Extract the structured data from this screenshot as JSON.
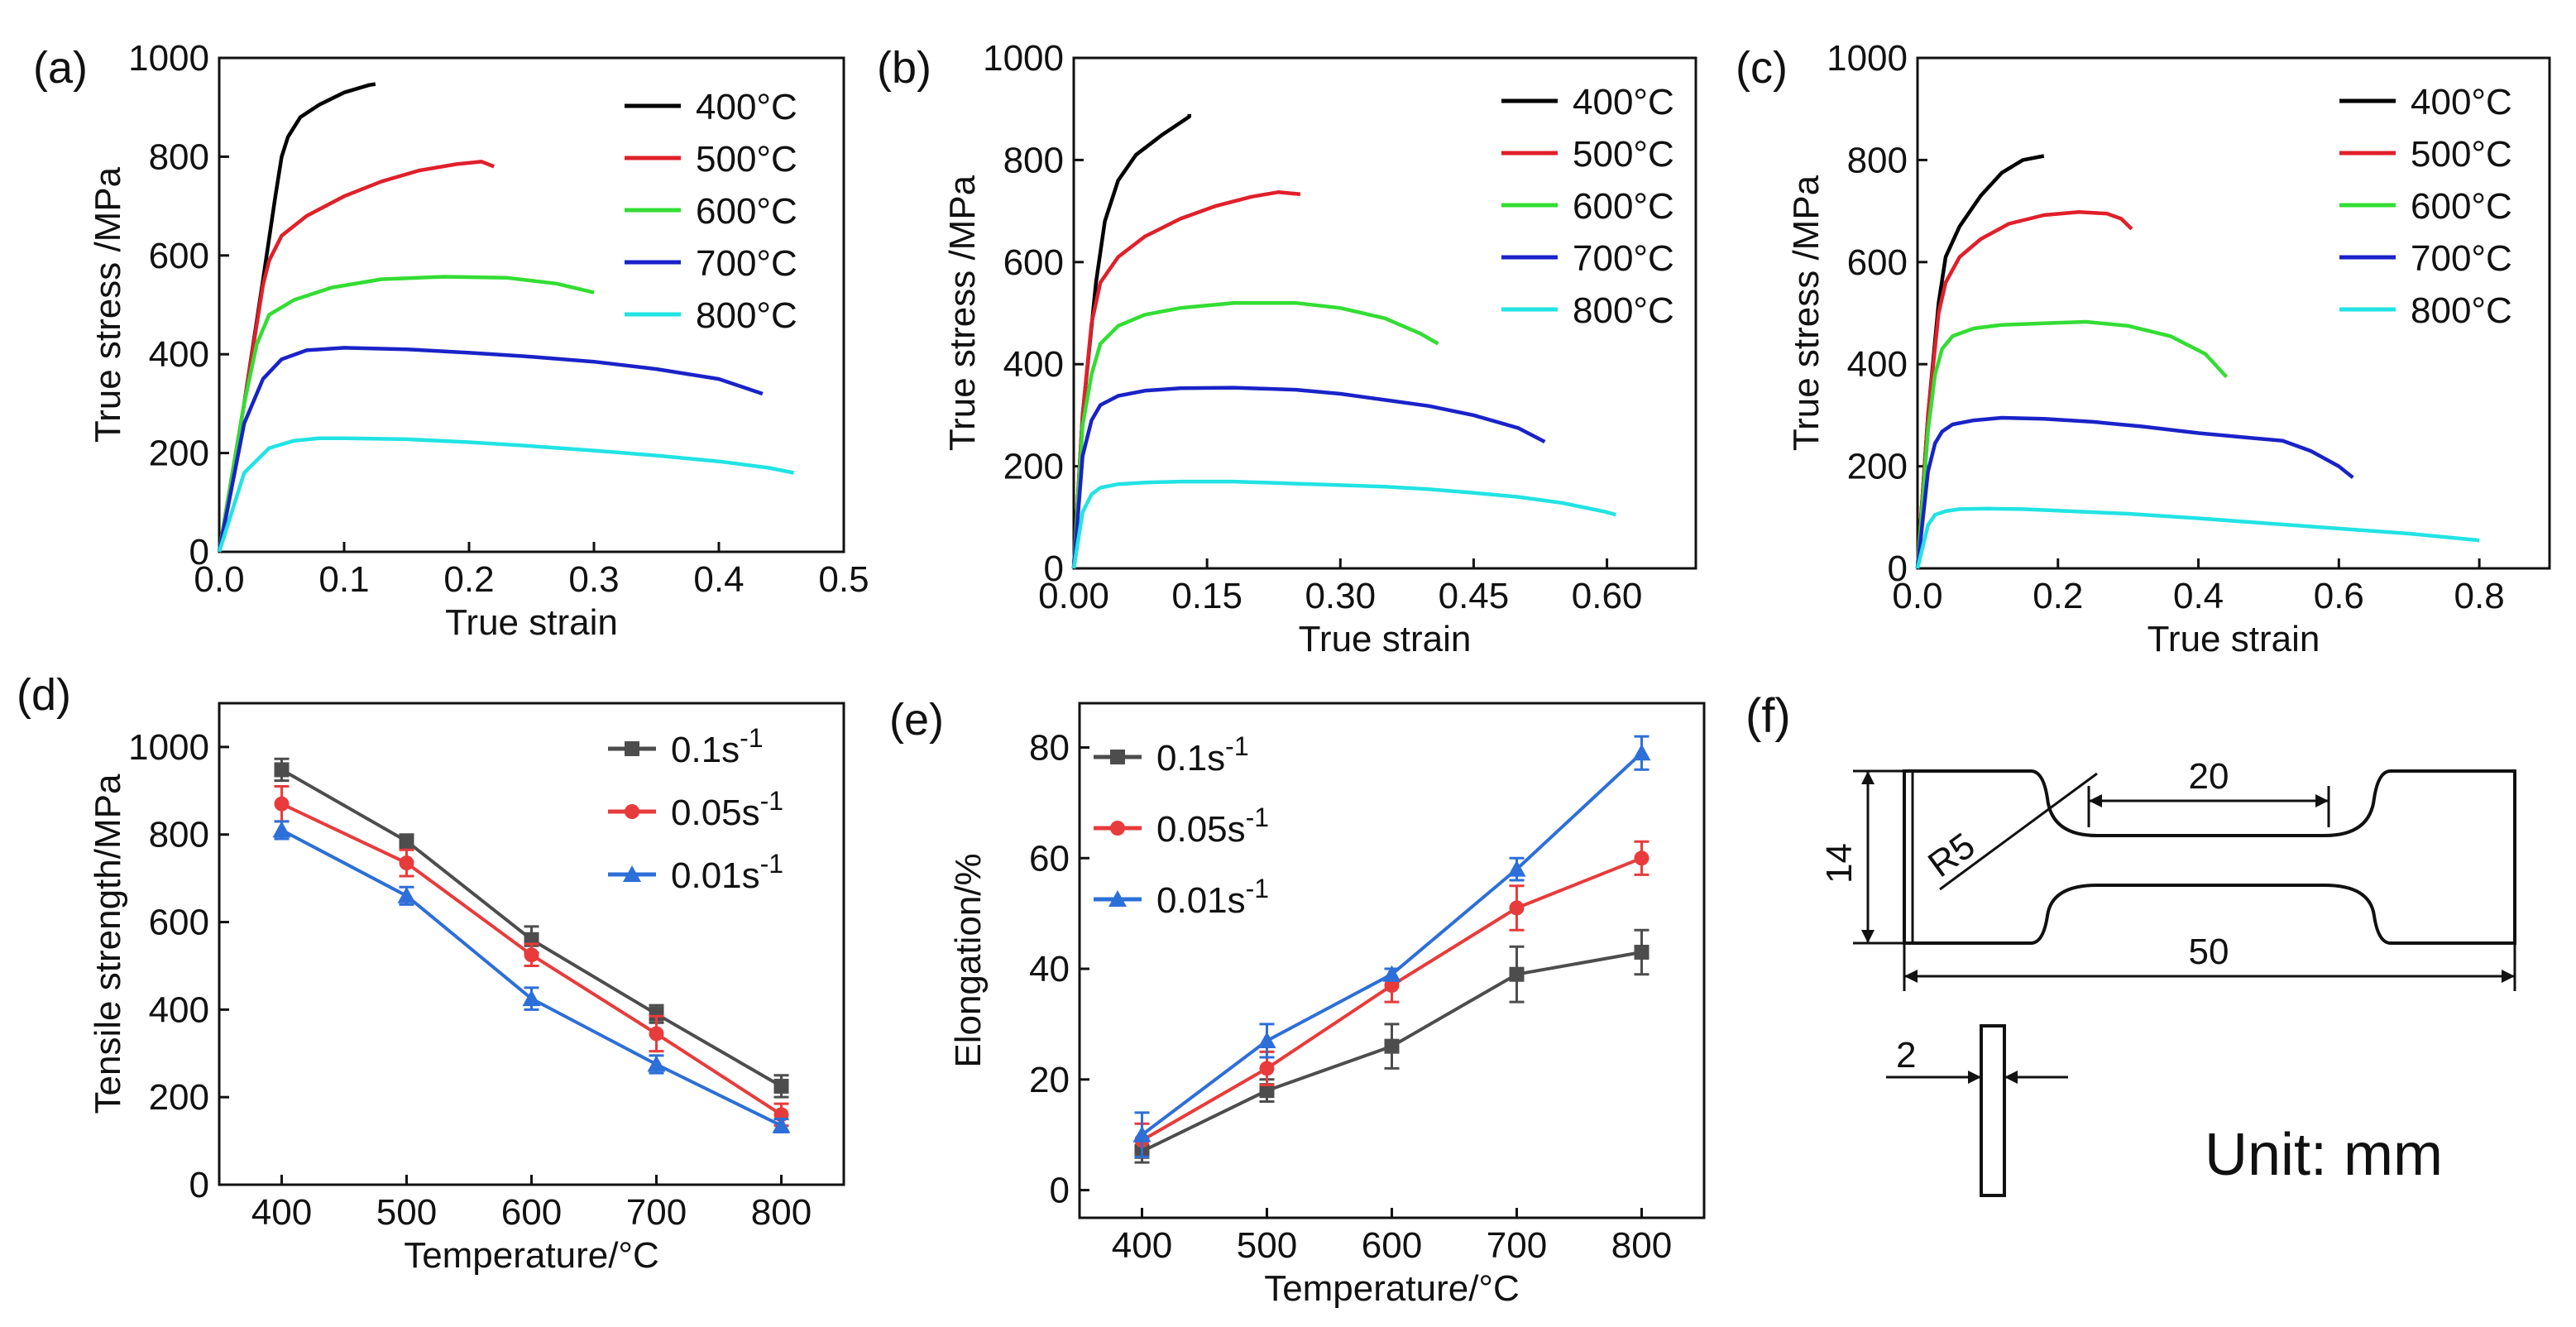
{
  "figure": {
    "unit_label": "Unit: mm",
    "panels": [
      "(a)",
      "(b)",
      "(c)",
      "(d)",
      "(e)",
      "(f)"
    ]
  },
  "colors": {
    "400": "#000000",
    "500": "#e0202a",
    "600": "#33dd33",
    "700": "#1a22c8",
    "800": "#22e3e3",
    "rate_0.1": "#4d4d4d",
    "rate_0.05": "#e83b3b",
    "rate_0.01": "#2d6fd8"
  },
  "chart_data": [
    {
      "id": "a",
      "label": "(a)",
      "type": "line",
      "xlabel": "True strain",
      "ylabel": "True stress /MPa",
      "xlim": [
        0,
        0.5
      ],
      "ylim": [
        0,
        1000
      ],
      "xticks": [
        0.0,
        0.1,
        0.2,
        0.3,
        0.4,
        0.5
      ],
      "xtick_labels": [
        "0.0",
        "0.1",
        "0.2",
        "0.3",
        "0.4",
        "0.5"
      ],
      "yticks": [
        0,
        200,
        400,
        600,
        800,
        1000
      ],
      "ytick_labels": [
        "0",
        "200",
        "400",
        "600",
        "800",
        "1000"
      ],
      "legend_position": "top-right",
      "series": [
        {
          "name": "400°C",
          "color": "#000000",
          "x": [
            0,
            0.02,
            0.035,
            0.045,
            0.05,
            0.055,
            0.065,
            0.08,
            0.1,
            0.12,
            0.125
          ],
          "y": [
            0,
            300,
            550,
            720,
            800,
            840,
            880,
            905,
            930,
            945,
            947
          ]
        },
        {
          "name": "500°C",
          "color": "#e0202a",
          "x": [
            0,
            0.02,
            0.035,
            0.04,
            0.05,
            0.07,
            0.1,
            0.13,
            0.16,
            0.19,
            0.21,
            0.22
          ],
          "y": [
            0,
            300,
            540,
            590,
            640,
            680,
            720,
            750,
            772,
            785,
            790,
            780
          ]
        },
        {
          "name": "600°C",
          "color": "#33dd33",
          "x": [
            0,
            0.02,
            0.03,
            0.04,
            0.06,
            0.09,
            0.13,
            0.18,
            0.23,
            0.27,
            0.3
          ],
          "y": [
            0,
            300,
            420,
            480,
            510,
            535,
            552,
            557,
            555,
            543,
            525
          ]
        },
        {
          "name": "700°C",
          "color": "#1a22c8",
          "x": [
            0,
            0.02,
            0.035,
            0.05,
            0.07,
            0.1,
            0.15,
            0.2,
            0.25,
            0.3,
            0.35,
            0.4,
            0.435
          ],
          "y": [
            0,
            260,
            350,
            390,
            408,
            413,
            410,
            403,
            395,
            385,
            370,
            350,
            320
          ]
        },
        {
          "name": "800°C",
          "color": "#22e3e3",
          "x": [
            0,
            0.02,
            0.04,
            0.06,
            0.08,
            0.1,
            0.15,
            0.2,
            0.25,
            0.3,
            0.35,
            0.4,
            0.44,
            0.46
          ],
          "y": [
            0,
            160,
            210,
            225,
            230,
            230,
            228,
            222,
            214,
            205,
            195,
            183,
            170,
            160
          ]
        }
      ]
    },
    {
      "id": "b",
      "label": "(b)",
      "type": "line",
      "xlabel": "True strain",
      "ylabel": "True stress /MPa",
      "xlim": [
        0,
        0.7
      ],
      "ylim": [
        0,
        1000
      ],
      "xticks": [
        0.0,
        0.15,
        0.3,
        0.45,
        0.6
      ],
      "xtick_labels": [
        "0.00",
        "0.15",
        "0.30",
        "0.45",
        "0.60"
      ],
      "yticks": [
        0,
        200,
        400,
        600,
        800,
        1000
      ],
      "ytick_labels": [
        "0",
        "200",
        "400",
        "600",
        "800",
        "1000"
      ],
      "legend_position": "top-right",
      "series": [
        {
          "name": "400°C",
          "color": "#000000",
          "x": [
            0,
            0.01,
            0.025,
            0.035,
            0.05,
            0.07,
            0.1,
            0.13,
            0.13
          ],
          "y": [
            0,
            300,
            560,
            680,
            760,
            810,
            850,
            885,
            890
          ]
        },
        {
          "name": "500°C",
          "color": "#e0202a",
          "x": [
            0,
            0.01,
            0.02,
            0.03,
            0.05,
            0.08,
            0.12,
            0.16,
            0.2,
            0.23,
            0.255
          ],
          "y": [
            0,
            300,
            480,
            560,
            610,
            650,
            685,
            710,
            728,
            737,
            733
          ]
        },
        {
          "name": "600°C",
          "color": "#33dd33",
          "x": [
            0,
            0.01,
            0.02,
            0.03,
            0.05,
            0.08,
            0.12,
            0.18,
            0.25,
            0.3,
            0.35,
            0.39,
            0.41
          ],
          "y": [
            0,
            280,
            380,
            440,
            475,
            497,
            510,
            520,
            520,
            510,
            490,
            460,
            440
          ]
        },
        {
          "name": "700°C",
          "color": "#1a22c8",
          "x": [
            0,
            0.01,
            0.02,
            0.03,
            0.05,
            0.08,
            0.12,
            0.18,
            0.25,
            0.3,
            0.35,
            0.4,
            0.45,
            0.5,
            0.53
          ],
          "y": [
            0,
            220,
            290,
            320,
            338,
            348,
            353,
            354,
            350,
            342,
            330,
            318,
            300,
            275,
            248
          ]
        },
        {
          "name": "800°C",
          "color": "#22e3e3",
          "x": [
            0,
            0.01,
            0.02,
            0.03,
            0.05,
            0.08,
            0.12,
            0.18,
            0.25,
            0.3,
            0.35,
            0.4,
            0.45,
            0.5,
            0.55,
            0.6,
            0.61
          ],
          "y": [
            0,
            110,
            145,
            158,
            165,
            168,
            170,
            170,
            166,
            163,
            160,
            155,
            148,
            140,
            128,
            110,
            105
          ]
        }
      ]
    },
    {
      "id": "c",
      "label": "(c)",
      "type": "line",
      "xlabel": "True strain",
      "ylabel": "True stress /MPa",
      "xlim": [
        0,
        0.9
      ],
      "ylim": [
        0,
        1000
      ],
      "xticks": [
        0.0,
        0.2,
        0.4,
        0.6,
        0.8
      ],
      "xtick_labels": [
        "0.0",
        "0.2",
        "0.4",
        "0.6",
        "0.8"
      ],
      "yticks": [
        0,
        200,
        400,
        600,
        800,
        1000
      ],
      "ytick_labels": [
        "0",
        "200",
        "400",
        "600",
        "800",
        "1000"
      ],
      "legend_position": "top-right",
      "series": [
        {
          "name": "400°C",
          "color": "#000000",
          "x": [
            0,
            0.015,
            0.03,
            0.04,
            0.06,
            0.09,
            0.12,
            0.15,
            0.18
          ],
          "y": [
            0,
            300,
            520,
            610,
            670,
            730,
            775,
            800,
            808
          ]
        },
        {
          "name": "500°C",
          "color": "#e0202a",
          "x": [
            0,
            0.015,
            0.03,
            0.04,
            0.06,
            0.09,
            0.13,
            0.18,
            0.23,
            0.27,
            0.29,
            0.305
          ],
          "y": [
            0,
            300,
            500,
            560,
            610,
            645,
            675,
            692,
            698,
            695,
            685,
            665
          ]
        },
        {
          "name": "600°C",
          "color": "#33dd33",
          "x": [
            0,
            0.015,
            0.025,
            0.035,
            0.05,
            0.08,
            0.12,
            0.18,
            0.24,
            0.3,
            0.36,
            0.41,
            0.44
          ],
          "y": [
            0,
            270,
            380,
            430,
            455,
            470,
            477,
            480,
            483,
            475,
            455,
            420,
            375
          ]
        },
        {
          "name": "700°C",
          "color": "#1a22c8",
          "x": [
            0,
            0.015,
            0.025,
            0.035,
            0.05,
            0.08,
            0.12,
            0.18,
            0.25,
            0.32,
            0.4,
            0.48,
            0.52,
            0.56,
            0.6,
            0.62
          ],
          "y": [
            0,
            190,
            245,
            268,
            282,
            290,
            295,
            293,
            287,
            278,
            265,
            255,
            250,
            230,
            200,
            178
          ]
        },
        {
          "name": "800°C",
          "color": "#22e3e3",
          "x": [
            0,
            0.015,
            0.025,
            0.04,
            0.06,
            0.1,
            0.15,
            0.2,
            0.3,
            0.4,
            0.5,
            0.6,
            0.7,
            0.8
          ],
          "y": [
            0,
            85,
            105,
            112,
            116,
            117,
            116,
            113,
            107,
            98,
            88,
            78,
            68,
            55
          ]
        }
      ]
    },
    {
      "id": "d",
      "label": "(d)",
      "type": "line",
      "xlabel": "Temperature/°C",
      "ylabel": "Tensile strength/MPa",
      "xlim": [
        350,
        850
      ],
      "ylim": [
        0,
        1100
      ],
      "xticks": [
        400,
        500,
        600,
        700,
        800
      ],
      "xtick_labels": [
        "400",
        "500",
        "600",
        "700",
        "800"
      ],
      "yticks": [
        0,
        200,
        400,
        600,
        800,
        1000
      ],
      "ytick_labels": [
        "0",
        "200",
        "400",
        "600",
        "800",
        "1000"
      ],
      "legend_position": "top-right",
      "categories": [
        400,
        500,
        600,
        700,
        800
      ],
      "series": [
        {
          "name": "0.1s",
          "sup": "-1",
          "color": "#4d4d4d",
          "marker": "square",
          "values": [
            948,
            785,
            560,
            390,
            225
          ],
          "errors": [
            25,
            15,
            30,
            20,
            25
          ]
        },
        {
          "name": "0.05s",
          "sup": "-1",
          "color": "#e83b3b",
          "marker": "circle",
          "values": [
            870,
            735,
            525,
            345,
            160
          ],
          "errors": [
            40,
            30,
            25,
            40,
            25
          ]
        },
        {
          "name": "0.01s",
          "sup": "-1",
          "color": "#2d6fd8",
          "marker": "triangle",
          "values": [
            810,
            660,
            425,
            275,
            135
          ],
          "errors": [
            20,
            20,
            25,
            20,
            15
          ]
        }
      ]
    },
    {
      "id": "e",
      "label": "(e)",
      "type": "line",
      "xlabel": "Temperature/°C",
      "ylabel": "Elongation/%",
      "xlim": [
        350,
        850
      ],
      "ylim": [
        -5,
        88
      ],
      "xticks": [
        400,
        500,
        600,
        700,
        800
      ],
      "xtick_labels": [
        "400",
        "500",
        "600",
        "700",
        "800"
      ],
      "yticks": [
        0,
        20,
        40,
        60,
        80
      ],
      "ytick_labels": [
        "0",
        "20",
        "40",
        "60",
        "80"
      ],
      "legend_position": "top-left",
      "categories": [
        400,
        500,
        600,
        700,
        800
      ],
      "series": [
        {
          "name": "0.1s",
          "sup": "-1",
          "color": "#4d4d4d",
          "marker": "square",
          "values": [
            7,
            18,
            26,
            39,
            43
          ],
          "errors": [
            2,
            2,
            4,
            5,
            4
          ]
        },
        {
          "name": "0.05s",
          "sup": "-1",
          "color": "#e83b3b",
          "marker": "circle",
          "values": [
            9,
            22,
            37,
            51,
            60
          ],
          "errors": [
            3,
            3,
            3,
            4,
            3
          ]
        },
        {
          "name": "0.01s",
          "sup": "-1",
          "color": "#2d6fd8",
          "marker": "triangle",
          "values": [
            10,
            27,
            39,
            58,
            79
          ],
          "errors": [
            4,
            3,
            1,
            2,
            3
          ]
        }
      ]
    }
  ],
  "specimen": {
    "label": "(f)",
    "dim_length": "50",
    "dim_gauge": "20",
    "dim_width": "14",
    "dim_radius": "R5",
    "dim_thickness": "2"
  }
}
